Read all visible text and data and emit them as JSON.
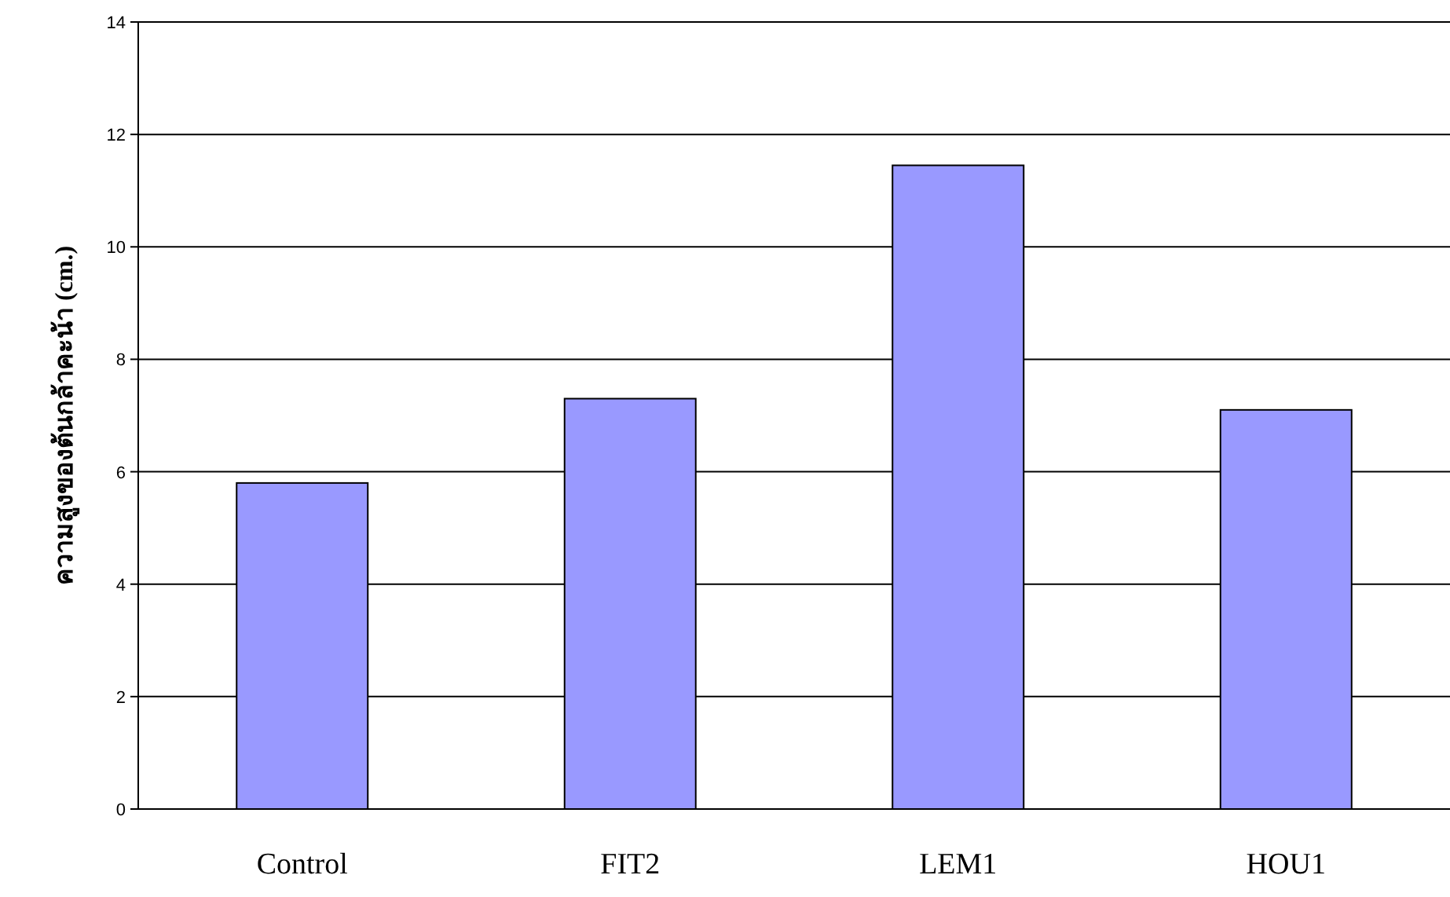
{
  "chart_data": {
    "type": "bar",
    "ylabel": "ความสูงของต้นกล้าคะน้า (cm.)",
    "categories": [
      "Control",
      "FIT2",
      "LEM1",
      "HOU1"
    ],
    "values": [
      5.8,
      7.3,
      11.45,
      7.1
    ],
    "color": "#9999ff",
    "ylim": [
      0,
      14
    ],
    "yticks": [
      0,
      2,
      4,
      6,
      8,
      10,
      12,
      14
    ],
    "grid": "y"
  }
}
